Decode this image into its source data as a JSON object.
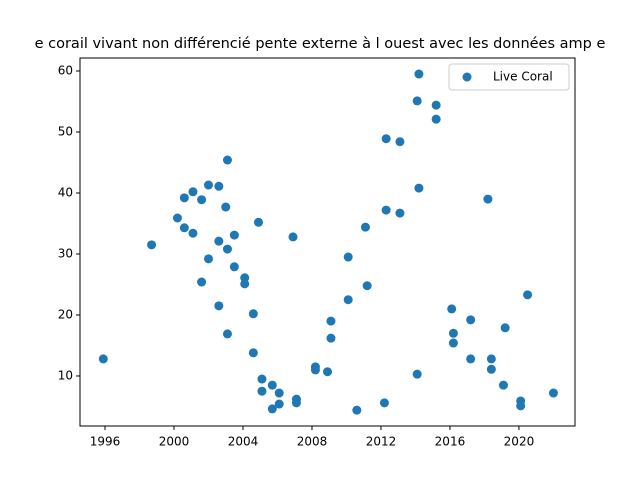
{
  "chart_data": {
    "type": "scatter",
    "title": "e corail vivant non différencié pente externe à l ouest avec les données amp e",
    "series": [
      {
        "name": "Live Coral",
        "color": "#1f77b4",
        "x": [
          1995.9,
          1998.7,
          2000.2,
          2000.6,
          2000.6,
          2001.1,
          2001.1,
          2001.6,
          2001.6,
          2002.0,
          2002.0,
          2002.6,
          2002.6,
          2002.6,
          2003.1,
          2003.0,
          2003.1,
          2003.1,
          2003.5,
          2003.5,
          2004.1,
          2004.1,
          2004.6,
          2004.6,
          2004.9,
          2005.1,
          2005.1,
          2005.7,
          2005.7,
          2006.1,
          2006.1,
          2006.9,
          2007.1,
          2007.1,
          2008.2,
          2008.2,
          2008.9,
          2009.1,
          2009.1,
          2010.1,
          2010.1,
          2010.6,
          2011.1,
          2011.2,
          2012.3,
          2012.3,
          2012.2,
          2013.1,
          2013.1,
          2014.2,
          2014.1,
          2014.2,
          2014.1,
          2015.2,
          2015.2,
          2016.1,
          2016.2,
          2016.2,
          2017.2,
          2017.2,
          2018.2,
          2018.4,
          2018.4,
          2019.2,
          2019.1,
          2020.1,
          2020.1,
          2020.5,
          2022.0
        ],
        "values": [
          12.8,
          31.5,
          35.9,
          39.2,
          34.3,
          40.2,
          33.4,
          38.9,
          25.4,
          41.3,
          29.2,
          41.1,
          32.1,
          21.5,
          45.4,
          37.7,
          30.8,
          16.9,
          33.1,
          27.9,
          26.1,
          25.1,
          20.2,
          13.8,
          35.2,
          9.5,
          7.5,
          8.5,
          4.6,
          7.2,
          5.4,
          32.8,
          6.2,
          5.6,
          11.5,
          11.0,
          10.7,
          19.0,
          16.2,
          29.5,
          22.5,
          4.4,
          34.4,
          24.8,
          48.9,
          37.2,
          5.6,
          48.4,
          36.7,
          59.5,
          55.1,
          40.8,
          10.3,
          54.4,
          52.1,
          21.0,
          17.0,
          15.4,
          19.2,
          12.8,
          39.0,
          12.8,
          11.1,
          17.9,
          8.5,
          5.9,
          5.1,
          23.3,
          7.2
        ]
      }
    ],
    "xlim": [
      1994.55,
      2023.25
    ],
    "xticks": [
      1996,
      2000,
      2004,
      2008,
      2012,
      2016,
      2020
    ],
    "ylim": [
      1.8,
      62.13
    ],
    "yticks": [
      10,
      20,
      30,
      40,
      50,
      60
    ],
    "legend": "upper right"
  }
}
